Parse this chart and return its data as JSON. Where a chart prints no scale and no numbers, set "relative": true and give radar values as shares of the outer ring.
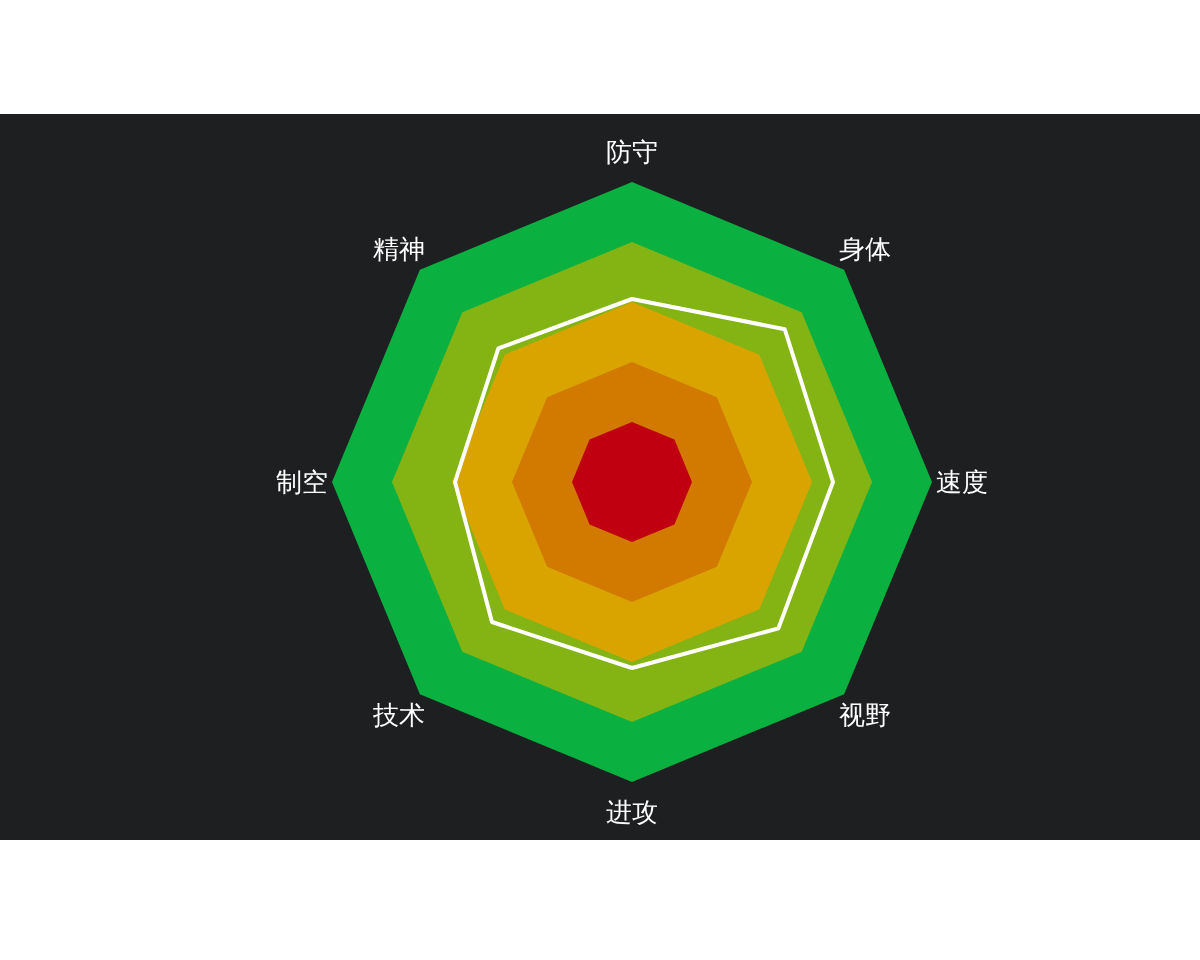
{
  "chart_data": {
    "type": "radar",
    "relative": true,
    "categories": [
      "防守",
      "身体",
      "速度",
      "视野",
      "进攻",
      "技术",
      "制空",
      "精神"
    ],
    "series": [
      {
        "color": "#ffffff",
        "values": [
          0.61,
          0.72,
          0.67,
          0.69,
          0.62,
          0.66,
          0.59,
          0.63
        ]
      }
    ]
  }
}
